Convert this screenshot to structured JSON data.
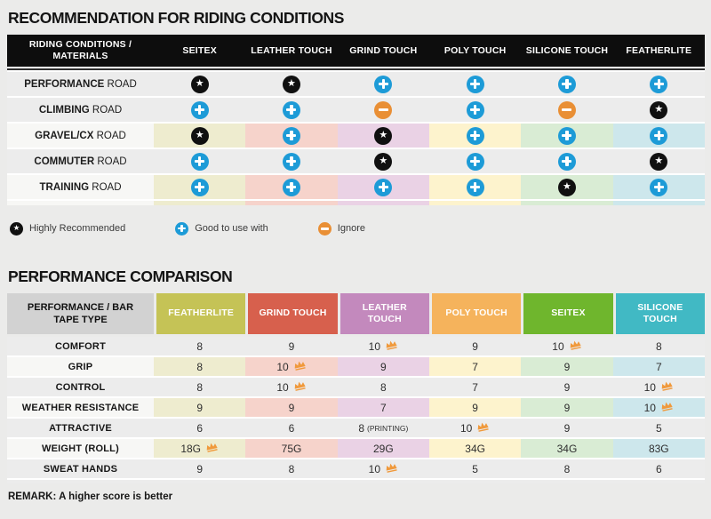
{
  "colors": {
    "page_bg": "#ebebea",
    "row_gray": "#ececec",
    "row_label_light": "#f7f7f5",
    "header_black": "#0d0d0d",
    "icon_blue": "#1d9bd7",
    "icon_orange": "#e98f35",
    "icon_black": "#101010",
    "crown_orange": "#f0993b",
    "column_tints": [
      "#eeeccf",
      "#f6d3cb",
      "#ead2e5",
      "#fdf3cd",
      "#d9ecd4",
      "#cde7ec"
    ]
  },
  "section1": {
    "title": "RECOMMENDATION FOR RIDING CONDITIONS",
    "table": {
      "corner": "RIDING CONDITIONS / MATERIALS",
      "columns": [
        "SEITEX",
        "LEATHER TOUCH",
        "GRIND TOUCH",
        "POLY TOUCH",
        "SILICONE TOUCH",
        "FEATHERLITE"
      ],
      "rows": [
        {
          "bold": "PERFORMANCE",
          "rest": "ROAD",
          "type": "gray",
          "icons": [
            "star",
            "star",
            "plus",
            "plus",
            "plus",
            "plus"
          ]
        },
        {
          "bold": "CLIMBING",
          "rest": "ROAD",
          "type": "gray",
          "icons": [
            "plus",
            "plus",
            "minus",
            "plus",
            "minus",
            "star"
          ]
        },
        {
          "bold": "GRAVEL/CX",
          "rest": "ROAD",
          "type": "tint",
          "icons": [
            "star",
            "plus",
            "star",
            "plus",
            "plus",
            "plus"
          ]
        },
        {
          "bold": "COMMUTER",
          "rest": "ROAD",
          "type": "gray",
          "icons": [
            "plus",
            "plus",
            "star",
            "plus",
            "plus",
            "star"
          ]
        },
        {
          "bold": "TRAINING",
          "rest": "ROAD",
          "type": "tint",
          "icons": [
            "plus",
            "plus",
            "plus",
            "plus",
            "star",
            "plus"
          ]
        }
      ]
    },
    "legend": [
      {
        "icon": "star",
        "label": "Highly Recommended"
      },
      {
        "icon": "plus",
        "label": "Good to use with"
      },
      {
        "icon": "minus",
        "label": "Ignore"
      }
    ]
  },
  "section2": {
    "title": "PERFORMANCE COMPARISON",
    "table": {
      "corner": "PERFORMANCE / BAR TAPE TYPE",
      "corner_bg": "#d2d2d2",
      "columns": [
        {
          "label": "FEATHERLITE",
          "color": "#c5c356"
        },
        {
          "label": "GRIND TOUCH",
          "color": "#d7604d"
        },
        {
          "label": "LEATHER TOUCH",
          "color": "#c389bd"
        },
        {
          "label": "POLY TOUCH",
          "color": "#f5b35c"
        },
        {
          "label": "SEITEX",
          "color": "#6fb62d"
        },
        {
          "label": "SILICONE TOUCH",
          "color": "#41b9c4"
        }
      ],
      "rows": [
        {
          "label": "COMFORT",
          "type": "gray",
          "cells": [
            {
              "v": "8"
            },
            {
              "v": "9"
            },
            {
              "v": "10",
              "crown": true
            },
            {
              "v": "9"
            },
            {
              "v": "10",
              "crown": true
            },
            {
              "v": "8"
            }
          ]
        },
        {
          "label": "GRIP",
          "type": "tint",
          "cells": [
            {
              "v": "8"
            },
            {
              "v": "10",
              "crown": true
            },
            {
              "v": "9"
            },
            {
              "v": "7"
            },
            {
              "v": "9"
            },
            {
              "v": "7"
            }
          ]
        },
        {
          "label": "CONTROL",
          "type": "gray",
          "cells": [
            {
              "v": "8"
            },
            {
              "v": "10",
              "crown": true
            },
            {
              "v": "8"
            },
            {
              "v": "7"
            },
            {
              "v": "9"
            },
            {
              "v": "10",
              "crown": true
            }
          ]
        },
        {
          "label": "WEATHER RESISTANCE",
          "type": "tint",
          "cells": [
            {
              "v": "9"
            },
            {
              "v": "9"
            },
            {
              "v": "7"
            },
            {
              "v": "9"
            },
            {
              "v": "9"
            },
            {
              "v": "10",
              "crown": true
            }
          ]
        },
        {
          "label": "ATTRACTIVE",
          "type": "gray",
          "cells": [
            {
              "v": "6"
            },
            {
              "v": "6"
            },
            {
              "v": "8",
              "suffix": "(PRINTING)"
            },
            {
              "v": "10",
              "crown": true
            },
            {
              "v": "9"
            },
            {
              "v": "5"
            }
          ]
        },
        {
          "label": "WEIGHT (ROLL)",
          "type": "tint",
          "cells": [
            {
              "v": "18G",
              "crown": true
            },
            {
              "v": "75G"
            },
            {
              "v": "29G"
            },
            {
              "v": "34G"
            },
            {
              "v": "34G"
            },
            {
              "v": "83G"
            }
          ]
        },
        {
          "label": "SWEAT HANDS",
          "type": "gray",
          "cells": [
            {
              "v": "9"
            },
            {
              "v": "8"
            },
            {
              "v": "10",
              "crown": true
            },
            {
              "v": "5"
            },
            {
              "v": "8"
            },
            {
              "v": "6"
            }
          ]
        }
      ]
    },
    "remark": "REMARK: A higher score is better"
  }
}
